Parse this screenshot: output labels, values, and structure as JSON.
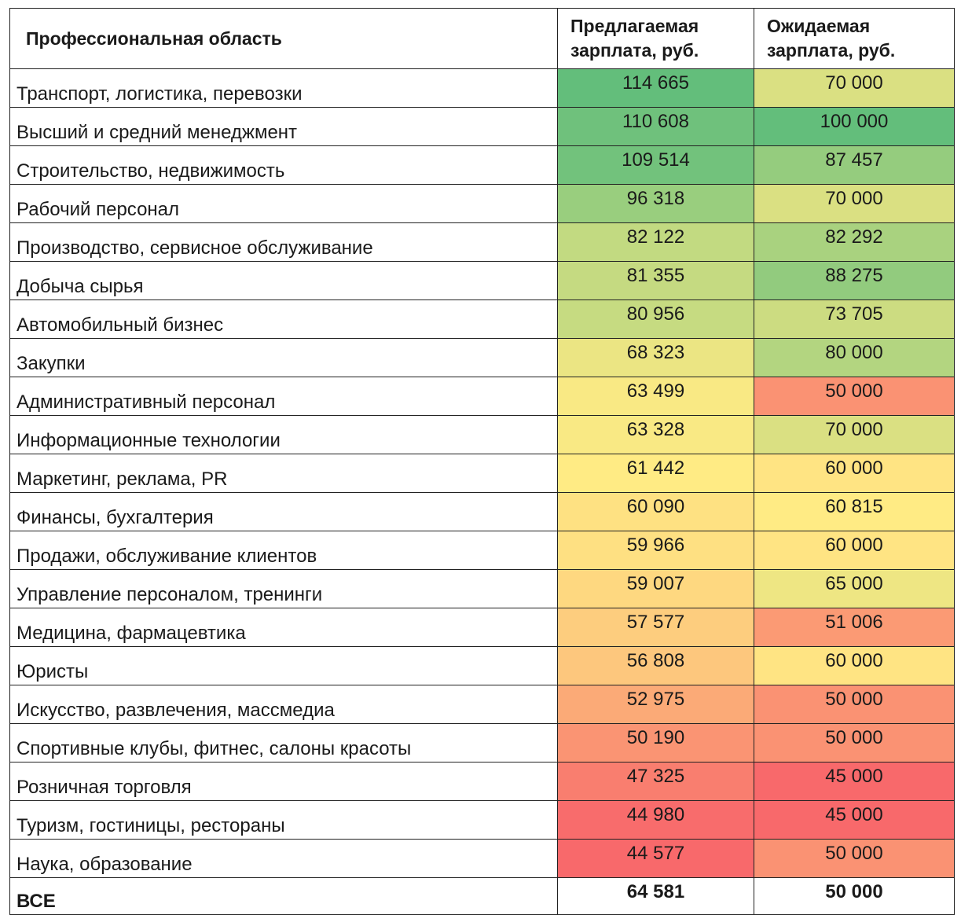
{
  "header": {
    "area": "Профессиональная область",
    "offered": "Предлагаемая зарплата, руб.",
    "expected": "Ожидаемая зарплата, руб."
  },
  "rows": [
    {
      "area": "Транспорт, логистика, перевозки",
      "offered": "114 665",
      "expected": "70 000"
    },
    {
      "area": "Высший и средний менеджмент",
      "offered": "110 608",
      "expected": "100 000"
    },
    {
      "area": "Строительство, недвижимость",
      "offered": "109 514",
      "expected": "87 457"
    },
    {
      "area": "Рабочий персонал",
      "offered": "96 318",
      "expected": "70 000"
    },
    {
      "area": "Производство, сервисное обслуживание",
      "offered": "82 122",
      "expected": "82 292"
    },
    {
      "area": "Добыча сырья",
      "offered": "81 355",
      "expected": "88 275"
    },
    {
      "area": "Автомобильный бизнес",
      "offered": "80 956",
      "expected": "73 705"
    },
    {
      "area": "Закупки",
      "offered": "68 323",
      "expected": "80 000"
    },
    {
      "area": "Административный персонал",
      "offered": "63 499",
      "expected": "50 000"
    },
    {
      "area": "Информационные технологии",
      "offered": "63 328",
      "expected": "70 000"
    },
    {
      "area": "Маркетинг, реклама, PR",
      "offered": "61 442",
      "expected": "60 000"
    },
    {
      "area": "Финансы, бухгалтерия",
      "offered": "60 090",
      "expected": "60 815"
    },
    {
      "area": "Продажи, обслуживание клиентов",
      "offered": "59 966",
      "expected": "60 000"
    },
    {
      "area": "Управление персоналом, тренинги",
      "offered": "59 007",
      "expected": "65 000"
    },
    {
      "area": "Медицина, фармацевтика",
      "offered": "57 577",
      "expected": "51 006"
    },
    {
      "area": "Юристы",
      "offered": "56 808",
      "expected": "60 000"
    },
    {
      "area": "Искусство, развлечения, массмедиа",
      "offered": "52 975",
      "expected": "50 000"
    },
    {
      "area": "Спортивные клубы, фитнес, салоны красоты",
      "offered": "50 190",
      "expected": "50 000"
    },
    {
      "area": "Розничная торговля",
      "offered": "47 325",
      "expected": "45 000"
    },
    {
      "area": "Туризм, гостиницы, рестораны",
      "offered": "44 980",
      "expected": "45 000"
    },
    {
      "area": "Наука, образование",
      "offered": "44 577",
      "expected": "50 000"
    }
  ],
  "total": {
    "area": "ВСЕ",
    "offered": "64 581",
    "expected": "50 000"
  },
  "colors": {
    "low": "#f8696b",
    "mid": "#ffeb84",
    "high": "#63be7b"
  }
}
